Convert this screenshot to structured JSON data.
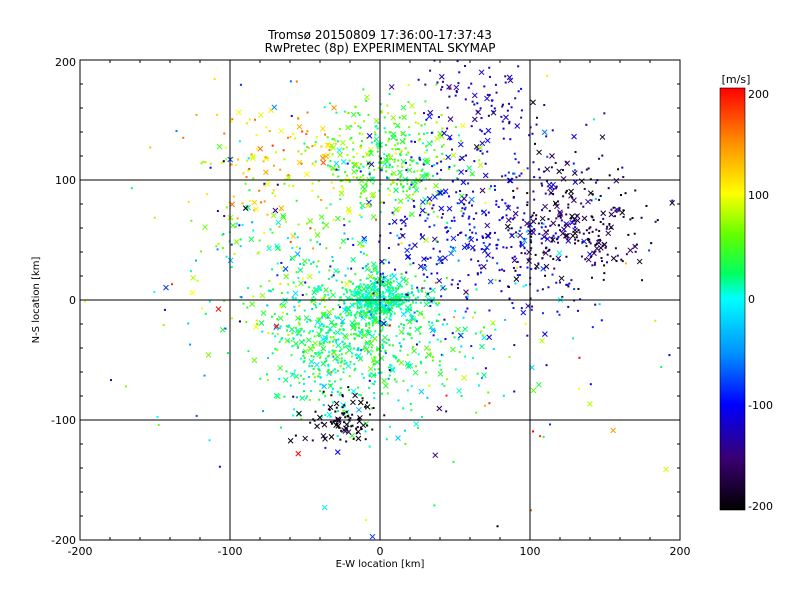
{
  "chart_data": {
    "type": "scatter",
    "title": "Tromsø 20150809 17:36:00-17:37:43",
    "subtitle": "RwPretec (8p) EXPERIMENTAL SKYMAP",
    "xlabel": "E-W location [km]",
    "ylabel": "N-S location [km]",
    "xlim": [
      -200,
      200
    ],
    "ylim": [
      -200,
      200
    ],
    "xticks": [
      "-200",
      "-100",
      "0",
      "100",
      "200"
    ],
    "yticks": [
      "-200",
      "-100",
      "0",
      "100",
      "200"
    ],
    "grid": true,
    "markers": [
      "dot",
      "x"
    ],
    "colorbar": {
      "label": "[m/s]",
      "range": [
        -200,
        200
      ],
      "ticks": [
        "200",
        "100",
        "0",
        "-100",
        "-200"
      ],
      "colormap": "rainbow"
    },
    "clusters": [
      {
        "x": 0,
        "y": 0,
        "sx": 14,
        "sy": 10,
        "v": 15,
        "vs": 18,
        "n": 420
      },
      {
        "x": -30,
        "y": -40,
        "sx": 22,
        "sy": 28,
        "v": 25,
        "vs": 25,
        "n": 500
      },
      {
        "x": 5,
        "y": 115,
        "sx": 25,
        "sy": 25,
        "v": 50,
        "vs": 25,
        "n": 380
      },
      {
        "x": 65,
        "y": 60,
        "sx": 40,
        "sy": 45,
        "v": -110,
        "vs": 20,
        "n": 420
      },
      {
        "x": 130,
        "y": 65,
        "sx": 25,
        "sy": 28,
        "v": -170,
        "vs": 20,
        "n": 260
      },
      {
        "x": 60,
        "y": 170,
        "sx": 22,
        "sy": 20,
        "v": -130,
        "vs": 18,
        "n": 90
      },
      {
        "x": -70,
        "y": 115,
        "sx": 25,
        "sy": 25,
        "v": 120,
        "vs": 35,
        "n": 130
      },
      {
        "x": -25,
        "y": -100,
        "sx": 12,
        "sy": 12,
        "v": -190,
        "vs": 12,
        "n": 90
      },
      {
        "x": -60,
        "y": 30,
        "sx": 30,
        "sy": 30,
        "v": 40,
        "vs": 50,
        "n": 160
      },
      {
        "x": 30,
        "y": -40,
        "sx": 25,
        "sy": 25,
        "v": 25,
        "vs": 25,
        "n": 120
      },
      {
        "x": 0,
        "y": 0,
        "sx": 90,
        "sy": 90,
        "v": 0,
        "vs": 100,
        "n": 220
      }
    ]
  }
}
